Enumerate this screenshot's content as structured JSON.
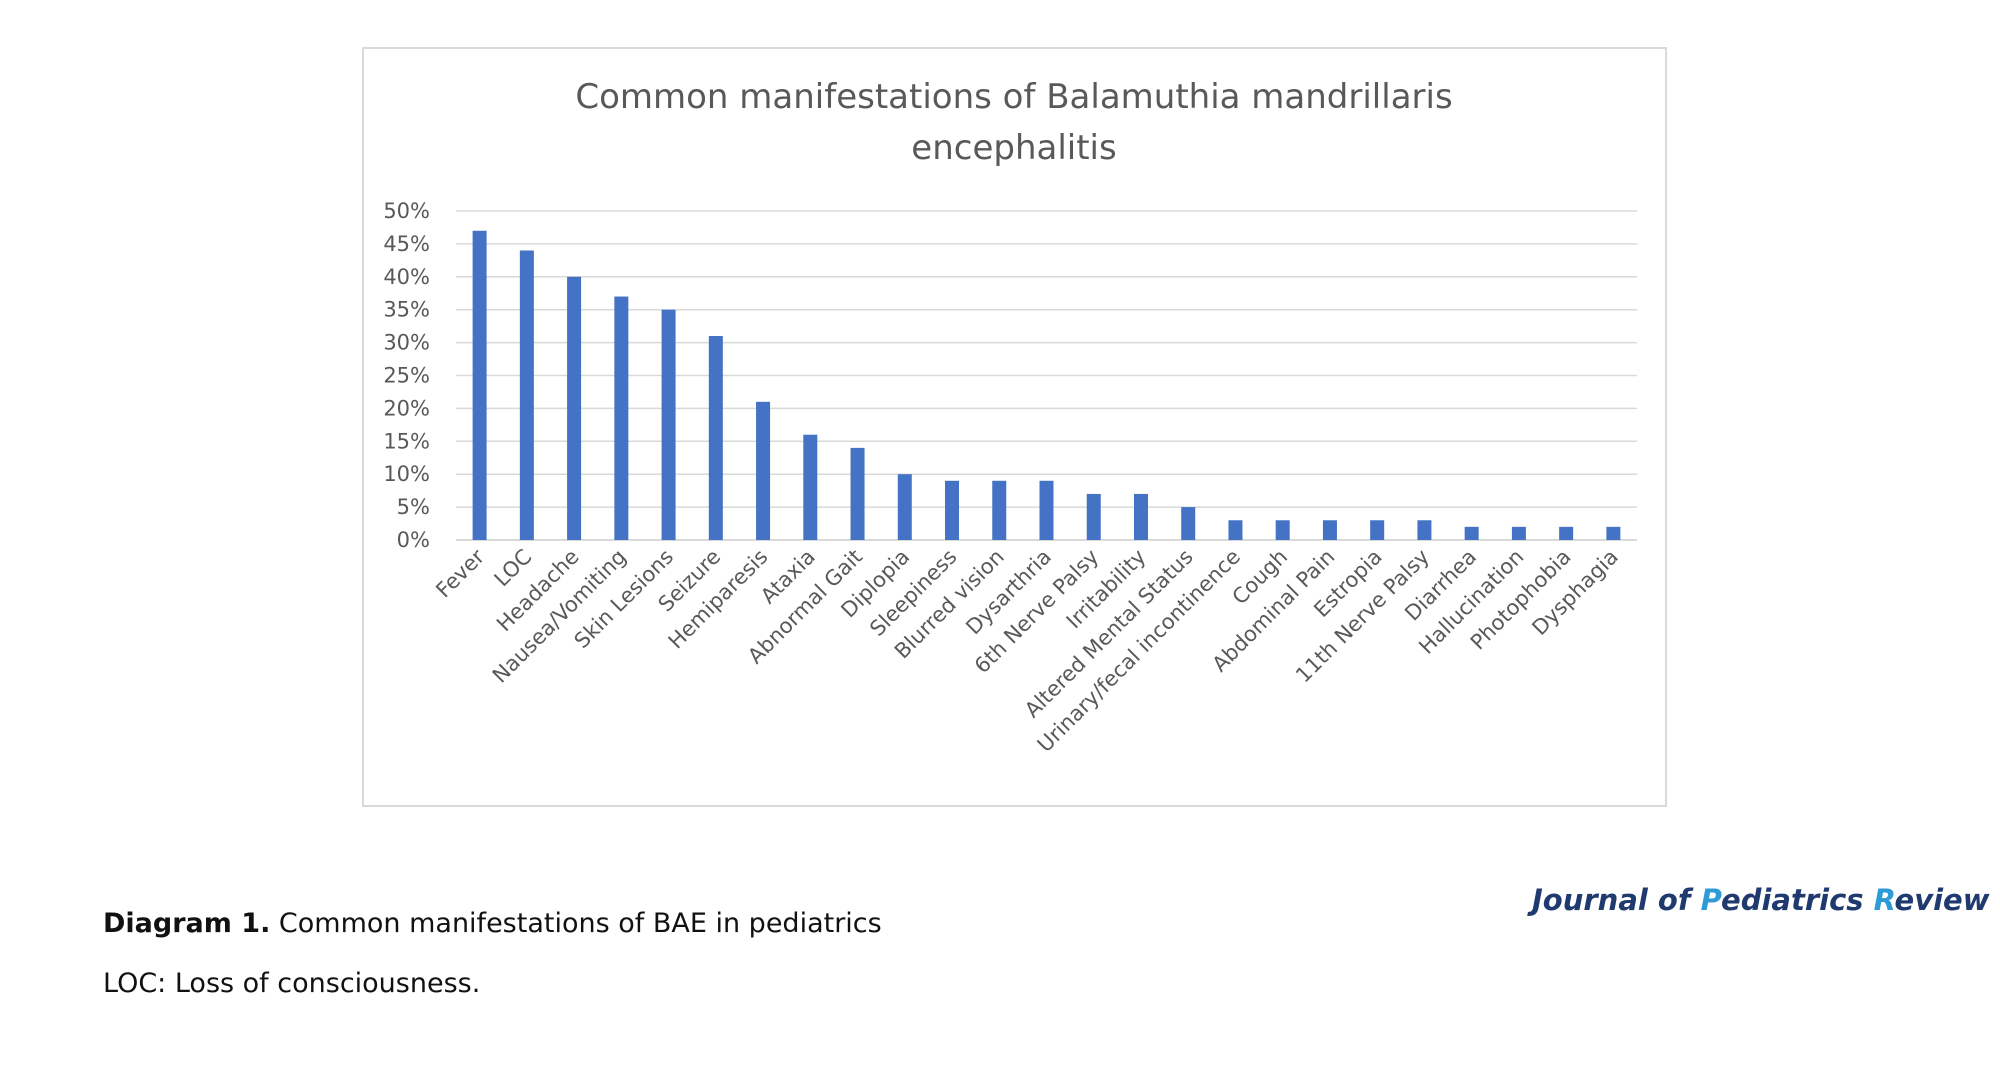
{
  "chart_data": {
    "type": "bar",
    "title": "Common manifestations of Balamuthia mandrillaris encephalitis",
    "title_lines": [
      "Common manifestations of Balamuthia mandrillaris",
      "encephalitis"
    ],
    "categories": [
      "Fever",
      "LOC",
      "Headache",
      "Nausea/Vomiting",
      "Skin Lesions",
      "Seizure",
      "Hemiparesis",
      "Ataxia",
      "Abnormal Gait",
      "Diplopia",
      "Sleepiness",
      "Blurred vision",
      "Dysarthria",
      "6th Nerve Palsy",
      "Irritability",
      "Altered Mental Status",
      "Urinary/fecal incontinence",
      "Cough",
      "Abdominal Pain",
      "Estropia",
      "11th Nerve Palsy",
      "Diarrhea",
      "Hallucination",
      "Photophobia",
      "Dysphagia"
    ],
    "values": [
      47,
      44,
      40,
      37,
      35,
      31,
      21,
      16,
      14,
      10,
      9,
      9,
      9,
      7,
      7,
      5,
      3,
      3,
      3,
      3,
      3,
      2,
      2,
      2,
      2
    ],
    "ylim": [
      0,
      50
    ],
    "yticks": [
      0,
      5,
      10,
      15,
      20,
      25,
      30,
      35,
      40,
      45,
      50
    ],
    "ytick_labels": [
      "0%",
      "5%",
      "10%",
      "15%",
      "20%",
      "25%",
      "30%",
      "35%",
      "40%",
      "45%",
      "50%"
    ],
    "xlabel": "",
    "ylabel": "",
    "grid": true,
    "bar_color": "#4472c4"
  },
  "caption": {
    "label": "Diagram 1.",
    "text": " Common manifestations of BAE in pediatrics",
    "abbreviation": "LOC: Loss of consciousness."
  },
  "journal": {
    "j": "J",
    "ournal_of": "ournal of ",
    "p": "P",
    "ediatrics": "ediatrics ",
    "r": "R",
    "eview": "eview"
  }
}
